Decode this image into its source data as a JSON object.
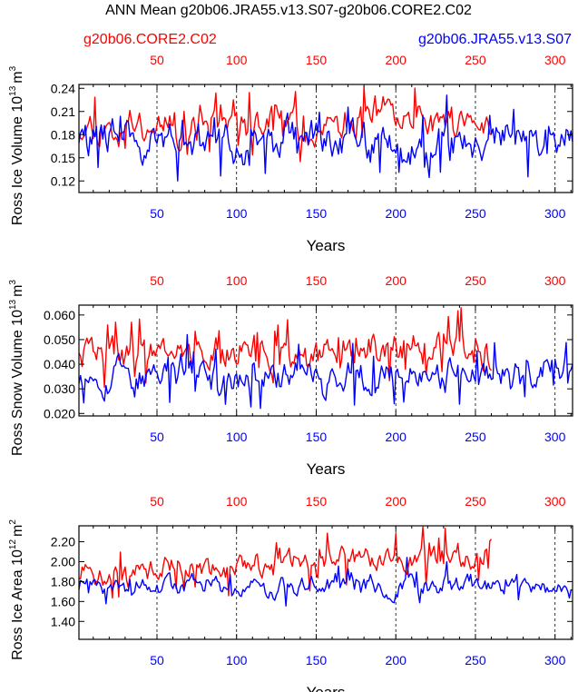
{
  "title": "ANN Mean g20b06.JRA55.v13.S07-g20b06.CORE2.C02",
  "legend": {
    "left": "g20b06.CORE2.C02",
    "right": "g20b06.JRA55.v13.S07"
  },
  "colors": {
    "red": "#ff0000",
    "blue": "#0000ff",
    "axis": "#000000",
    "dash": "#000000"
  },
  "chart_data": [
    {
      "type": "line",
      "id": "volume",
      "ylabel": "Ross Ice Volume 10",
      "ylabel_exp": "13",
      "ylabel_unit": "m",
      "ylabel_unit_exp": "3",
      "xlabel": "Years",
      "ylim": [
        0.105,
        0.245
      ],
      "yticks": [
        0.12,
        0.15,
        0.18,
        0.21,
        0.24
      ],
      "ytick_labels": [
        "0.12",
        "0.15",
        "0.18",
        "0.21",
        "0.24"
      ],
      "x_bottom": {
        "range": [
          1,
          311
        ],
        "ticks": [
          50,
          100,
          150,
          200,
          250,
          300
        ],
        "color": "blue"
      },
      "x_top": {
        "range": [
          1,
          311
        ],
        "ticks": [
          50,
          100,
          150,
          200,
          250,
          300
        ],
        "color": "red"
      },
      "dashed_x": [
        50,
        100,
        150,
        200,
        250,
        300
      ],
      "series": [
        {
          "name": "g20b06.CORE2.C02",
          "color": "red",
          "n": 260,
          "mean": 0.192,
          "amp": 0.025,
          "min": 0.145,
          "max": 0.242,
          "seed": 11
        },
        {
          "name": "g20b06.JRA55.v13.S07",
          "color": "blue",
          "n": 311,
          "mean": 0.172,
          "amp": 0.027,
          "min": 0.112,
          "max": 0.235,
          "seed": 29
        }
      ]
    },
    {
      "type": "line",
      "id": "snow",
      "ylabel": "Ross Snow Volume 10",
      "ylabel_exp": "13",
      "ylabel_unit": "m",
      "ylabel_unit_exp": "3",
      "xlabel": "Years",
      "ylim": [
        0.019,
        0.064
      ],
      "yticks": [
        0.02,
        0.03,
        0.04,
        0.05,
        0.06
      ],
      "ytick_labels": [
        "0.020",
        "0.030",
        "0.040",
        "0.050",
        "0.060"
      ],
      "x_bottom": {
        "range": [
          1,
          311
        ],
        "ticks": [
          50,
          100,
          150,
          200,
          250,
          300
        ],
        "color": "blue"
      },
      "x_top": {
        "range": [
          1,
          311
        ],
        "ticks": [
          50,
          100,
          150,
          200,
          250,
          300
        ],
        "color": "red"
      },
      "dashed_x": [
        50,
        100,
        150,
        200,
        250,
        300
      ],
      "series": [
        {
          "name": "g20b06.CORE2.C02",
          "color": "red",
          "n": 260,
          "mean": 0.045,
          "amp": 0.008,
          "min": 0.023,
          "max": 0.063,
          "seed": 41
        },
        {
          "name": "g20b06.JRA55.v13.S07",
          "color": "blue",
          "n": 311,
          "mean": 0.036,
          "amp": 0.008,
          "min": 0.02,
          "max": 0.058,
          "seed": 53
        }
      ]
    },
    {
      "type": "line",
      "id": "area",
      "ylabel": "Ross Ice Area 10",
      "ylabel_exp": "12",
      "ylabel_unit": "m",
      "ylabel_unit_exp": "2",
      "xlabel": "Years",
      "ylim": [
        1.22,
        2.36
      ],
      "yticks": [
        1.4,
        1.6,
        1.8,
        2.0,
        2.2
      ],
      "ytick_labels": [
        "1.40",
        "1.60",
        "1.80",
        "2.00",
        "2.20"
      ],
      "x_bottom": {
        "range": [
          1,
          311
        ],
        "ticks": [
          50,
          100,
          150,
          200,
          250,
          300
        ],
        "color": "blue"
      },
      "x_top": {
        "range": [
          1,
          311
        ],
        "ticks": [
          50,
          100,
          150,
          200,
          250,
          300
        ],
        "color": "red"
      },
      "dashed_x": [
        50,
        100,
        150,
        200,
        250,
        300
      ],
      "series": [
        {
          "name": "g20b06.CORE2.C02",
          "color": "red",
          "n": 260,
          "mean": 1.97,
          "amp": 0.15,
          "min": 1.6,
          "max": 2.35,
          "seed": 71,
          "trend": 0.22
        },
        {
          "name": "g20b06.JRA55.v13.S07",
          "color": "blue",
          "n": 311,
          "mean": 1.76,
          "amp": 0.12,
          "min": 1.27,
          "max": 2.08,
          "seed": 89
        }
      ]
    }
  ]
}
